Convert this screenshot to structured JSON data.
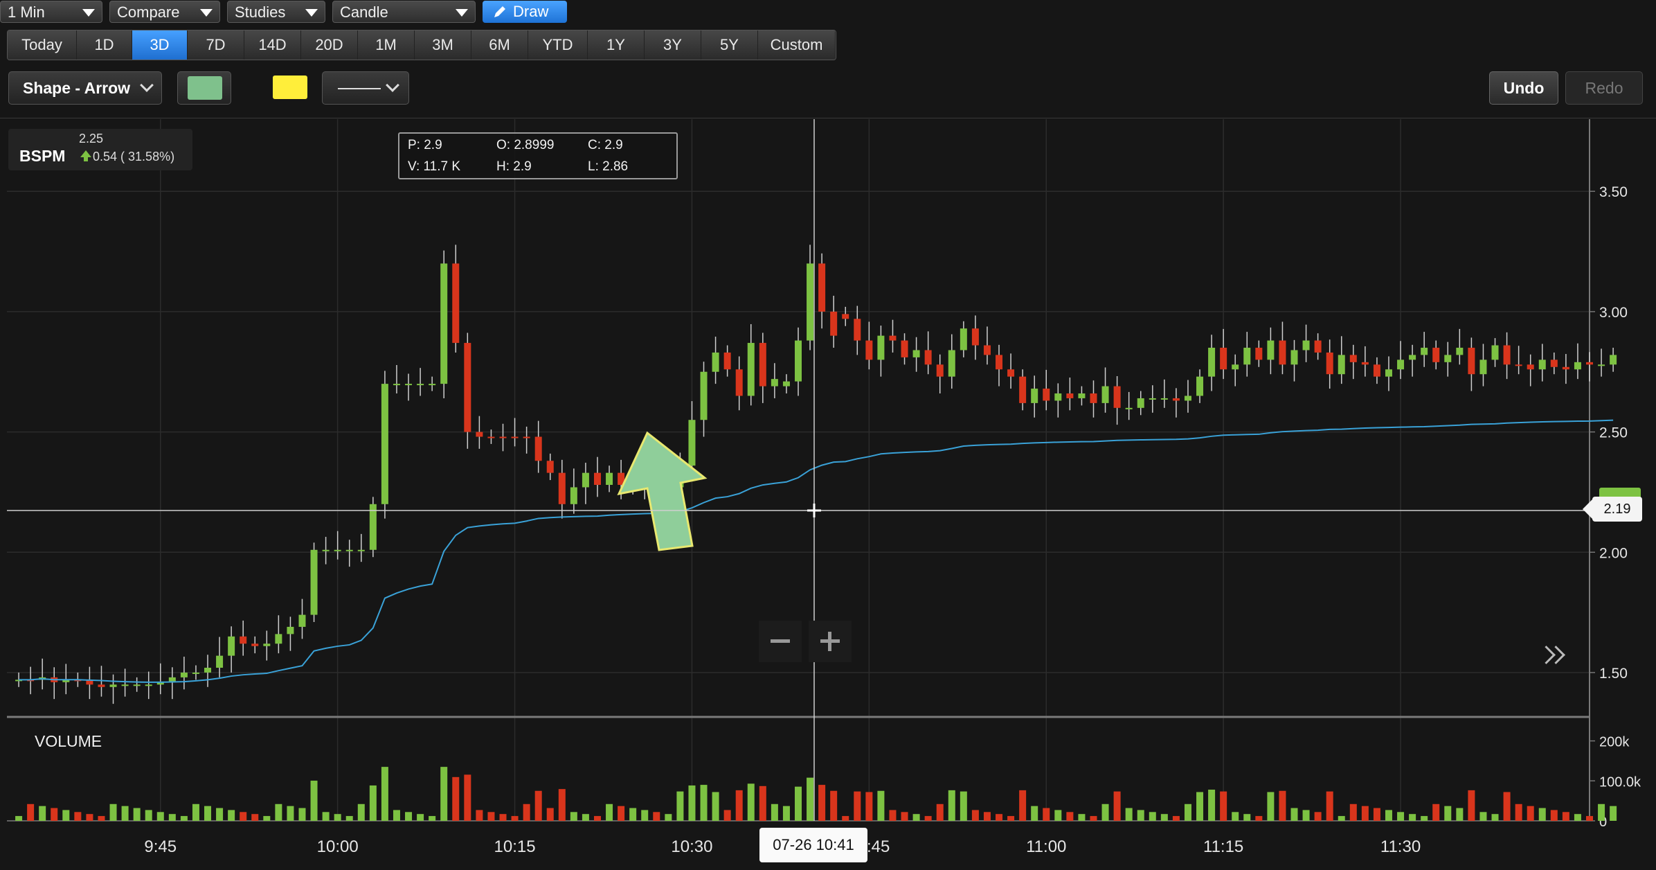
{
  "toolbar": {
    "interval": "1 Min",
    "compare": "Compare",
    "studies": "Studies",
    "chart_type": "Candle",
    "draw": "Draw"
  },
  "ranges": [
    {
      "label": "Today",
      "active": false
    },
    {
      "label": "1D",
      "active": false
    },
    {
      "label": "3D",
      "active": true
    },
    {
      "label": "7D",
      "active": false
    },
    {
      "label": "14D",
      "active": false
    },
    {
      "label": "20D",
      "active": false
    },
    {
      "label": "1M",
      "active": false
    },
    {
      "label": "3M",
      "active": false
    },
    {
      "label": "6M",
      "active": false
    },
    {
      "label": "YTD",
      "active": false
    },
    {
      "label": "1Y",
      "active": false
    },
    {
      "label": "3Y",
      "active": false
    },
    {
      "label": "5Y",
      "active": false
    },
    {
      "label": "Custom",
      "active": false
    }
  ],
  "drawbar": {
    "shape": "Shape - Arrow",
    "fill_color": "#7fc18c",
    "line_color": "#ffee3a",
    "undo": "Undo",
    "redo": "Redo"
  },
  "ticker": {
    "symbol": "BSPM",
    "last": "2.25",
    "change": "0.54 ( 31.58%)"
  },
  "ohlc": {
    "p": "P: 2.9",
    "o": "O: 2.8999",
    "c": "C: 2.9",
    "v": "V: 11.7 K",
    "h": "H: 2.9",
    "l": "L: 2.86"
  },
  "crosshair": {
    "time": "07-26 10:41",
    "price": "2.19"
  },
  "volume_label": "VOLUME",
  "colors": {
    "up": "#7dc242",
    "down": "#d9351c",
    "vwap": "#3aa2d8",
    "arrow": "#8fce9a"
  },
  "chart_data": {
    "type": "candlestick",
    "x_ticks": [
      "9:45",
      "10:00",
      "10:15",
      "10:30",
      "10:45",
      "11:00",
      "11:15",
      "11:30"
    ],
    "x_tick_minutes": [
      585,
      600,
      615,
      630,
      645,
      660,
      675,
      690
    ],
    "x_range_minutes": [
      572,
      706
    ],
    "y_ticks": [
      "3.50",
      "3.00",
      "2.50",
      "2.00",
      "1.50"
    ],
    "y_tick_values": [
      3.5,
      3.0,
      2.5,
      2.0,
      1.5
    ],
    "ylim": [
      1.33,
      3.8
    ],
    "volume_ticks": [
      "200k",
      "100.0k",
      "0"
    ],
    "volume_tick_values": [
      200000,
      100000,
      0
    ],
    "volume_max": 260000,
    "candles_close": [
      1.47,
      1.47,
      1.48,
      1.46,
      1.47,
      1.47,
      1.45,
      1.44,
      1.45,
      1.45,
      1.45,
      1.45,
      1.46,
      1.48,
      1.5,
      1.5,
      1.52,
      1.57,
      1.65,
      1.62,
      1.61,
      1.62,
      1.66,
      1.69,
      1.74,
      2.01,
      2.01,
      2.01,
      2.01,
      2.01,
      2.2,
      2.7,
      2.7,
      2.7,
      2.7,
      2.7,
      3.2,
      2.87,
      2.5,
      2.48,
      2.48,
      2.48,
      2.48,
      2.48,
      2.38,
      2.33,
      2.2,
      2.27,
      2.33,
      2.28,
      2.33,
      2.28,
      2.29,
      2.3,
      2.28,
      2.27,
      2.36,
      2.55,
      2.75,
      2.83,
      2.76,
      2.65,
      2.87,
      2.69,
      2.72,
      2.71,
      2.88,
      3.2,
      3.0,
      2.9,
      2.97,
      2.88,
      2.8,
      2.9,
      2.88,
      2.81,
      2.84,
      2.78,
      2.73,
      2.84,
      2.93,
      2.86,
      2.82,
      2.76,
      2.73,
      2.62,
      2.68,
      2.63,
      2.66,
      2.64,
      2.66,
      2.62,
      2.69,
      2.6,
      2.6,
      2.64,
      2.64,
      2.64,
      2.63,
      2.65,
      2.73,
      2.85,
      2.76,
      2.78,
      2.85,
      2.8,
      2.88,
      2.78,
      2.84,
      2.88,
      2.83,
      2.74,
      2.82,
      2.79,
      2.78,
      2.73,
      2.76,
      2.8,
      2.82,
      2.85,
      2.79,
      2.82,
      2.85,
      2.74,
      2.8,
      2.86,
      2.78,
      2.78,
      2.76,
      2.8,
      2.77,
      2.76,
      2.79,
      2.78,
      2.78,
      2.82
    ],
    "candles_dir": [
      "u",
      "d",
      "u",
      "d",
      "u",
      "d",
      "d",
      "d",
      "u",
      "u",
      "u",
      "u",
      "u",
      "u",
      "u",
      "u",
      "u",
      "u",
      "u",
      "d",
      "d",
      "u",
      "u",
      "u",
      "u",
      "u",
      "u",
      "u",
      "u",
      "u",
      "u",
      "u",
      "u",
      "u",
      "u",
      "u",
      "u",
      "d",
      "d",
      "d",
      "d",
      "d",
      "d",
      "d",
      "d",
      "d",
      "d",
      "u",
      "u",
      "d",
      "u",
      "d",
      "u",
      "u",
      "d",
      "u",
      "u",
      "u",
      "u",
      "u",
      "d",
      "d",
      "u",
      "d",
      "u",
      "u",
      "u",
      "u",
      "d",
      "d",
      "d",
      "d",
      "d",
      "u",
      "d",
      "d",
      "u",
      "d",
      "d",
      "u",
      "u",
      "d",
      "d",
      "d",
      "d",
      "d",
      "u",
      "d",
      "u",
      "d",
      "u",
      "d",
      "u",
      "d",
      "u",
      "u",
      "u",
      "u",
      "d",
      "u",
      "u",
      "u",
      "d",
      "u",
      "u",
      "d",
      "u",
      "d",
      "u",
      "u",
      "d",
      "d",
      "u",
      "d",
      "d",
      "d",
      "u",
      "u",
      "u",
      "u",
      "d",
      "u",
      "u",
      "d",
      "u",
      "u",
      "d",
      "d",
      "d",
      "u",
      "d",
      "d",
      "u",
      "d",
      "u",
      "u"
    ]
  }
}
